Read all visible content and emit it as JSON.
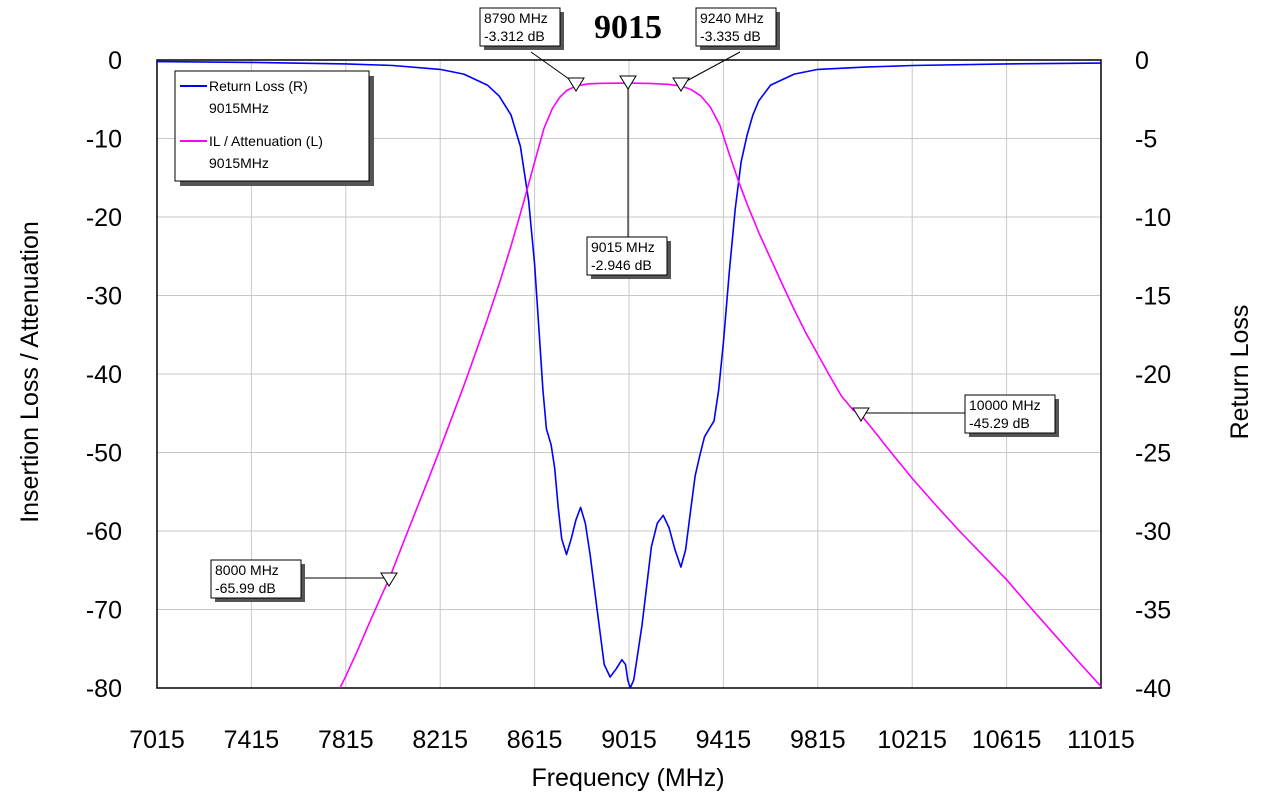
{
  "chart_data": {
    "type": "line",
    "title": "9015",
    "xlabel": "Frequency (MHz)",
    "ylabel_left": "Insertion Loss / Attenuation",
    "ylabel_right": "Return Loss",
    "xlim": [
      7015,
      11015
    ],
    "ylim_left": [
      -80,
      0
    ],
    "ylim_right": [
      -40,
      0
    ],
    "x_ticks": [
      7015,
      7415,
      7815,
      8215,
      8615,
      9015,
      9415,
      9815,
      10215,
      10615,
      11015
    ],
    "x_tick_labels": [
      "7015",
      "7415",
      "7815",
      "8215",
      "8615",
      "9015",
      "9415",
      "9815",
      "10215",
      "10615",
      "11015"
    ],
    "y_left_ticks": [
      0,
      -10,
      -20,
      -30,
      -40,
      -50,
      -60,
      -70,
      -80
    ],
    "y_left_tick_labels": [
      "0",
      "-10",
      "-20",
      "-30",
      "-40",
      "-50",
      "-60",
      "-70",
      "-80"
    ],
    "y_right_ticks": [
      0,
      -5,
      -10,
      -15,
      -20,
      -25,
      -30,
      -35,
      -40
    ],
    "y_right_tick_labels": [
      "0",
      "-5",
      "-10",
      "-15",
      "-20",
      "-25",
      "-30",
      "-35",
      "-40"
    ],
    "grid": true,
    "legend_position": "top-left",
    "series": [
      {
        "name": "Return Loss (R)",
        "subtitle": "9015MHz",
        "axis": "right",
        "color": "#0000ff",
        "points": [
          [
            7015,
            -0.1
          ],
          [
            7415,
            -0.15
          ],
          [
            7815,
            -0.25
          ],
          [
            8015,
            -0.35
          ],
          [
            8215,
            -0.6
          ],
          [
            8315,
            -0.9
          ],
          [
            8415,
            -1.6
          ],
          [
            8465,
            -2.3
          ],
          [
            8515,
            -3.5
          ],
          [
            8555,
            -5.5
          ],
          [
            8590,
            -9
          ],
          [
            8615,
            -13
          ],
          [
            8635,
            -17.5
          ],
          [
            8650,
            -21
          ],
          [
            8665,
            -23.5
          ],
          [
            8685,
            -24.5
          ],
          [
            8700,
            -26
          ],
          [
            8715,
            -28.5
          ],
          [
            8730,
            -30.5
          ],
          [
            8750,
            -31.5
          ],
          [
            8770,
            -30.5
          ],
          [
            8790,
            -29.3
          ],
          [
            8810,
            -28.5
          ],
          [
            8830,
            -29.5
          ],
          [
            8850,
            -31.5
          ],
          [
            8880,
            -35
          ],
          [
            8910,
            -38.5
          ],
          [
            8935,
            -39.3
          ],
          [
            8960,
            -38.8
          ],
          [
            8985,
            -38.2
          ],
          [
            9000,
            -38.5
          ],
          [
            9010,
            -39.5
          ],
          [
            9020,
            -40
          ],
          [
            9035,
            -39.5
          ],
          [
            9050,
            -38
          ],
          [
            9070,
            -36
          ],
          [
            9090,
            -33.5
          ],
          [
            9110,
            -31
          ],
          [
            9135,
            -29.5
          ],
          [
            9160,
            -29
          ],
          [
            9185,
            -29.8
          ],
          [
            9210,
            -31.2
          ],
          [
            9235,
            -32.3
          ],
          [
            9255,
            -31.2
          ],
          [
            9275,
            -28.8
          ],
          [
            9295,
            -26.5
          ],
          [
            9315,
            -25.2
          ],
          [
            9335,
            -24
          ],
          [
            9355,
            -23.5
          ],
          [
            9375,
            -23
          ],
          [
            9395,
            -21
          ],
          [
            9415,
            -18
          ],
          [
            9440,
            -13.5
          ],
          [
            9465,
            -9.5
          ],
          [
            9490,
            -6.5
          ],
          [
            9515,
            -4.8
          ],
          [
            9540,
            -3.5
          ],
          [
            9565,
            -2.6
          ],
          [
            9615,
            -1.6
          ],
          [
            9715,
            -0.9
          ],
          [
            9815,
            -0.6
          ],
          [
            10015,
            -0.45
          ],
          [
            10215,
            -0.35
          ],
          [
            10615,
            -0.25
          ],
          [
            11015,
            -0.2
          ]
        ]
      },
      {
        "name": "IL / Attenuation (L)",
        "subtitle": "9015MHz",
        "axis": "left",
        "color": "#ff00ff",
        "points": [
          [
            7790,
            -80
          ],
          [
            7815,
            -78.5
          ],
          [
            7865,
            -75.2
          ],
          [
            7915,
            -71.7
          ],
          [
            7965,
            -68.3
          ],
          [
            8000,
            -65.99
          ],
          [
            8065,
            -61
          ],
          [
            8115,
            -57.2
          ],
          [
            8165,
            -53.4
          ],
          [
            8215,
            -49.5
          ],
          [
            8265,
            -45.5
          ],
          [
            8315,
            -41.5
          ],
          [
            8365,
            -37.3
          ],
          [
            8415,
            -33
          ],
          [
            8465,
            -28.5
          ],
          [
            8515,
            -23.7
          ],
          [
            8565,
            -18.5
          ],
          [
            8615,
            -13
          ],
          [
            8655,
            -8.7
          ],
          [
            8690,
            -6.2
          ],
          [
            8720,
            -4.8
          ],
          [
            8750,
            -3.9
          ],
          [
            8790,
            -3.312
          ],
          [
            8840,
            -3.05
          ],
          [
            8900,
            -2.97
          ],
          [
            9015,
            -2.946
          ],
          [
            9100,
            -2.98
          ],
          [
            9180,
            -3.1
          ],
          [
            9240,
            -3.335
          ],
          [
            9280,
            -3.8
          ],
          [
            9320,
            -4.6
          ],
          [
            9360,
            -6
          ],
          [
            9400,
            -8.3
          ],
          [
            9440,
            -12
          ],
          [
            9480,
            -15.5
          ],
          [
            9515,
            -18.3
          ],
          [
            9565,
            -22
          ],
          [
            9615,
            -25.3
          ],
          [
            9665,
            -28.6
          ],
          [
            9715,
            -31.8
          ],
          [
            9765,
            -34.8
          ],
          [
            9815,
            -37.5
          ],
          [
            9865,
            -40.2
          ],
          [
            9915,
            -42.8
          ],
          [
            9965,
            -44.6
          ],
          [
            10000,
            -45.29
          ],
          [
            10065,
            -47.7
          ],
          [
            10115,
            -49.6
          ],
          [
            10215,
            -53.3
          ],
          [
            10315,
            -56.7
          ],
          [
            10415,
            -60
          ],
          [
            10515,
            -63.1
          ],
          [
            10615,
            -66.2
          ],
          [
            10715,
            -69.7
          ],
          [
            10815,
            -73.1
          ],
          [
            10915,
            -76.5
          ],
          [
            11015,
            -79.8
          ]
        ]
      }
    ],
    "markers": [
      {
        "freq": 8000,
        "value": -65.99,
        "label1": "8000 MHz",
        "label2": "-65.99 dB"
      },
      {
        "freq": 8790,
        "value": -3.312,
        "label1": "8790 MHz",
        "label2": "-3.312 dB"
      },
      {
        "freq": 9015,
        "value": -2.946,
        "label1": "9015 MHz",
        "label2": "-2.946 dB"
      },
      {
        "freq": 9240,
        "value": -3.335,
        "label1": "9240 MHz",
        "label2": "-3.335 dB"
      },
      {
        "freq": 10000,
        "value": -45.29,
        "label1": "10000 MHz",
        "label2": "-45.29 dB"
      }
    ]
  }
}
